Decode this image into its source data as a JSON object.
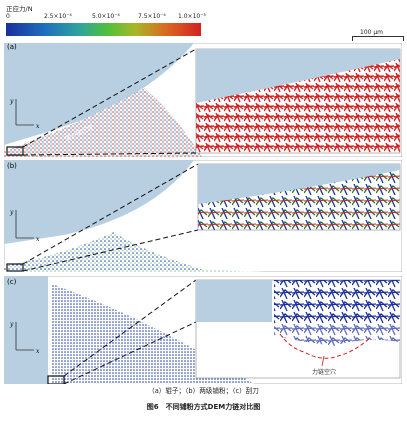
{
  "colorbar": {
    "title": "正应力/N",
    "ticks": [
      "0",
      "2.5×10⁻⁴",
      "5.0×10⁻⁴",
      "7.5×10⁻⁴",
      "1.0×10⁻³"
    ],
    "colors": [
      "#1a2f9e",
      "#2ea59a",
      "#4fbf3c",
      "#d96a22",
      "#d42121"
    ]
  },
  "scale_bar": "100 μm",
  "panels": [
    {
      "label": "(a)",
      "annotation": "强力链区域",
      "axis_y": "y",
      "axis_x": "x"
    },
    {
      "label": "(b)",
      "axis_y": "y",
      "axis_x": "x"
    },
    {
      "label": "(c)",
      "axis_y": "y",
      "axis_x": "x",
      "annotation": "力链空穴"
    }
  ],
  "captions": {
    "sub": "（a）辊子；（b）两级铺粉；（c）刮刀",
    "main": "图6　不同铺粉方式DEM力链对比图"
  }
}
